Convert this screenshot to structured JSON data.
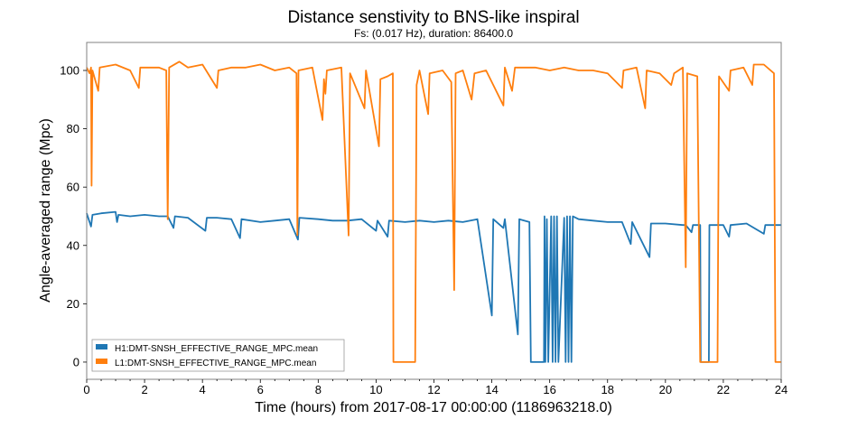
{
  "chart_data": {
    "type": "line",
    "title": "Distance senstivity to BNS-like inspiral",
    "subtitle": "Fs: (0.017 Hz), duration: 86400.0",
    "xlabel": "Time (hours) from 2017-08-17 00:00:00 (1186963218.0)",
    "ylabel": "Angle-averaged range (Mpc)",
    "xlim": [
      0,
      24
    ],
    "ylim": [
      -5.9,
      109.6
    ],
    "xticks": [
      "0",
      "2",
      "4",
      "6",
      "8",
      "10",
      "12",
      "14",
      "16",
      "18",
      "20",
      "22",
      "24"
    ],
    "yticks": [
      "0",
      "20",
      "40",
      "60",
      "80",
      "100"
    ],
    "grid": false,
    "legend_position": "lower-left",
    "series": [
      {
        "name": "H1:DMT-SNSH_EFFECTIVE_RANGE_MPC.mean",
        "color": "#1f77b4",
        "points": [
          [
            0,
            51
          ],
          [
            0.15,
            46.5
          ],
          [
            0.2,
            50.5
          ],
          [
            0.5,
            51
          ],
          [
            1,
            51.5
          ],
          [
            1.05,
            48
          ],
          [
            1.1,
            50.5
          ],
          [
            1.5,
            50
          ],
          [
            2,
            50.5
          ],
          [
            2.5,
            50
          ],
          [
            2.8,
            50
          ],
          [
            3.0,
            46
          ],
          [
            3.05,
            50
          ],
          [
            3.5,
            49.5
          ],
          [
            4.1,
            45
          ],
          [
            4.15,
            49.5
          ],
          [
            4.5,
            49.5
          ],
          [
            5,
            49
          ],
          [
            5.3,
            42.5
          ],
          [
            5.35,
            49
          ],
          [
            6,
            48
          ],
          [
            6.5,
            48.5
          ],
          [
            7,
            49
          ],
          [
            7.3,
            42
          ],
          [
            7.35,
            49.5
          ],
          [
            8,
            49
          ],
          [
            8.5,
            48.5
          ],
          [
            9,
            48.5
          ],
          [
            9.5,
            49
          ],
          [
            10,
            45
          ],
          [
            10.05,
            48.5
          ],
          [
            10.4,
            43
          ],
          [
            10.45,
            48.5
          ],
          [
            11,
            48
          ],
          [
            11.5,
            48.5
          ],
          [
            12,
            48
          ],
          [
            12.5,
            48.5
          ],
          [
            13,
            48
          ],
          [
            13.5,
            49
          ],
          [
            14,
            16
          ],
          [
            14.05,
            49
          ],
          [
            14.4,
            46
          ],
          [
            14.45,
            49
          ],
          [
            14.9,
            9.5
          ],
          [
            14.95,
            49
          ],
          [
            15.3,
            48
          ],
          [
            15.35,
            0
          ],
          [
            15.8,
            0
          ],
          [
            15.82,
            50
          ],
          [
            15.85,
            0
          ],
          [
            15.9,
            49
          ],
          [
            15.95,
            0
          ],
          [
            16.05,
            50
          ],
          [
            16.1,
            0
          ],
          [
            16.15,
            50
          ],
          [
            16.2,
            0
          ],
          [
            16.25,
            50
          ],
          [
            16.3,
            0
          ],
          [
            16.5,
            49.5
          ],
          [
            16.55,
            0
          ],
          [
            16.6,
            50
          ],
          [
            16.65,
            0
          ],
          [
            16.7,
            50
          ],
          [
            16.75,
            0
          ],
          [
            16.8,
            50
          ],
          [
            17,
            49
          ],
          [
            17.5,
            48.5
          ],
          [
            18,
            48
          ],
          [
            18.5,
            48
          ],
          [
            18.8,
            40.5
          ],
          [
            18.85,
            48
          ],
          [
            19.45,
            36
          ],
          [
            19.5,
            47.5
          ],
          [
            20,
            47.5
          ],
          [
            20.6,
            47
          ],
          [
            20.7,
            47
          ],
          [
            20.9,
            44.5
          ],
          [
            20.95,
            47
          ],
          [
            21.2,
            47
          ],
          [
            21.22,
            0
          ],
          [
            21.5,
            0
          ],
          [
            21.52,
            47
          ],
          [
            22,
            47
          ],
          [
            22.2,
            43
          ],
          [
            22.25,
            47
          ],
          [
            22.8,
            47.5
          ],
          [
            23.4,
            44
          ],
          [
            23.45,
            47
          ],
          [
            23.8,
            47
          ],
          [
            24,
            47
          ]
        ]
      },
      {
        "name": "L1:DMT-SNSH_EFFECTIVE_RANGE_MPC.mean",
        "color": "#ff7f0e",
        "points": [
          [
            0,
            101
          ],
          [
            0.1,
            99
          ],
          [
            0.15,
            101
          ],
          [
            0.17,
            60.5
          ],
          [
            0.2,
            100
          ],
          [
            0.4,
            93
          ],
          [
            0.45,
            101
          ],
          [
            1,
            102
          ],
          [
            1.5,
            100
          ],
          [
            1.8,
            94
          ],
          [
            1.85,
            101
          ],
          [
            2.5,
            101
          ],
          [
            2.75,
            100
          ],
          [
            2.8,
            49
          ],
          [
            2.85,
            101
          ],
          [
            3.2,
            103
          ],
          [
            3.5,
            101
          ],
          [
            4,
            102
          ],
          [
            4.5,
            94
          ],
          [
            4.55,
            100
          ],
          [
            5,
            101
          ],
          [
            5.5,
            101
          ],
          [
            6,
            102
          ],
          [
            6.5,
            100
          ],
          [
            7,
            101
          ],
          [
            7.25,
            99
          ],
          [
            7.28,
            43.5
          ],
          [
            7.32,
            100
          ],
          [
            7.8,
            101
          ],
          [
            8.15,
            83
          ],
          [
            8.2,
            97
          ],
          [
            8.25,
            92
          ],
          [
            8.3,
            100
          ],
          [
            8.8,
            101
          ],
          [
            9.05,
            43.4
          ],
          [
            9.1,
            99
          ],
          [
            9.6,
            87
          ],
          [
            9.65,
            100
          ],
          [
            10.1,
            74
          ],
          [
            10.15,
            97
          ],
          [
            10.4,
            98
          ],
          [
            10.58,
            99
          ],
          [
            10.6,
            0
          ],
          [
            11.35,
            0
          ],
          [
            11.4,
            95
          ],
          [
            11.5,
            100
          ],
          [
            11.8,
            85
          ],
          [
            11.85,
            99
          ],
          [
            12.3,
            100
          ],
          [
            12.6,
            96
          ],
          [
            12.7,
            24.7
          ],
          [
            12.75,
            99
          ],
          [
            13,
            100
          ],
          [
            13.3,
            90
          ],
          [
            13.4,
            99
          ],
          [
            13.8,
            100
          ],
          [
            14.4,
            88
          ],
          [
            14.45,
            101
          ],
          [
            14.7,
            93
          ],
          [
            14.8,
            101
          ],
          [
            15.5,
            101
          ],
          [
            16,
            100
          ],
          [
            16.5,
            101
          ],
          [
            17,
            100
          ],
          [
            17.5,
            100
          ],
          [
            18,
            99
          ],
          [
            18.5,
            94
          ],
          [
            18.55,
            100
          ],
          [
            19,
            101
          ],
          [
            19.3,
            87
          ],
          [
            19.35,
            100
          ],
          [
            19.8,
            99
          ],
          [
            20.2,
            95
          ],
          [
            20.3,
            99
          ],
          [
            20.6,
            101
          ],
          [
            20.7,
            32.5
          ],
          [
            20.75,
            99
          ],
          [
            21.1,
            98
          ],
          [
            21.2,
            0
          ],
          [
            21.8,
            0
          ],
          [
            21.85,
            98
          ],
          [
            22.2,
            93
          ],
          [
            22.25,
            100
          ],
          [
            22.7,
            101
          ],
          [
            23,
            95
          ],
          [
            23.05,
            102
          ],
          [
            23.4,
            102
          ],
          [
            23.75,
            99
          ],
          [
            23.8,
            0
          ],
          [
            24,
            0
          ]
        ]
      }
    ]
  }
}
